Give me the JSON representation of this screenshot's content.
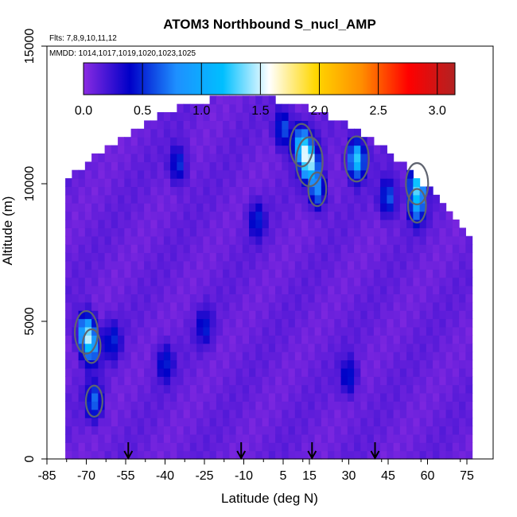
{
  "chart_data": {
    "type": "heatmap",
    "title": "ATOM3 Northbound S_nucl_AMP",
    "flights_label": "Flts: 7,8,9,10,11,12",
    "dates_label": "MMDD: 1014,1017,1019,1020,1023,1025",
    "xlabel": "Latitude (deg N)",
    "ylabel": "Altitude (m)",
    "xlim": [
      -85,
      85
    ],
    "ylim": [
      0,
      15000
    ],
    "x_ticks": [
      "-85",
      "-70",
      "-55",
      "-40",
      "-25",
      "-10",
      "5",
      "15",
      "30",
      "45",
      "60",
      "75"
    ],
    "x_tick_values": [
      -85,
      -70,
      -55,
      -40,
      -25,
      -10,
      5,
      15,
      30,
      45,
      60,
      75
    ],
    "y_ticks": [
      "0",
      "5000",
      "10000",
      "15000"
    ],
    "y_tick_values": [
      0,
      5000,
      10000,
      15000
    ],
    "colorbar": {
      "range": [
        0,
        3.15
      ],
      "ticks": [
        "0.0",
        "0.5",
        "1.0",
        "1.5",
        "2.0",
        "2.5",
        "3.0"
      ],
      "tick_values": [
        0,
        0.5,
        1.0,
        1.5,
        2.0,
        2.5,
        3.0
      ],
      "colors": [
        "#8a2be2",
        "#0000c8",
        "#1e90ff",
        "#00bfff",
        "#ffffff",
        "#ffd700",
        "#ff8c00",
        "#ff0000",
        "#b22222"
      ]
    },
    "arrow_latitudes": [
      -54,
      -11,
      16,
      40
    ],
    "background_value": 0.1,
    "hotspots": [
      {
        "lat": 15,
        "alt": 10800,
        "value": 1.3
      },
      {
        "lat": 12,
        "alt": 11400,
        "value": 1.05
      },
      {
        "lat": 18,
        "alt": 9800,
        "value": 0.7
      },
      {
        "lat": 33,
        "alt": 10900,
        "value": 1.15
      },
      {
        "lat": 56,
        "alt": 10000,
        "value": 1.0
      },
      {
        "lat": 56,
        "alt": 9200,
        "value": 0.7
      },
      {
        "lat": -70,
        "alt": 4600,
        "value": 1.05
      },
      {
        "lat": -68,
        "alt": 4100,
        "value": 0.7
      },
      {
        "lat": -67,
        "alt": 2100,
        "value": 0.6
      },
      {
        "lat": 5,
        "alt": 12000,
        "value": 0.55
      },
      {
        "lat": 45,
        "alt": 9500,
        "value": 0.55
      },
      {
        "lat": -35,
        "alt": 10700,
        "value": 0.45
      },
      {
        "lat": -5,
        "alt": 8700,
        "value": 0.4
      },
      {
        "lat": -40,
        "alt": 3500,
        "value": 0.4
      },
      {
        "lat": 30,
        "alt": 3000,
        "value": 0.4
      },
      {
        "lat": -60,
        "alt": 4300,
        "value": 0.4
      },
      {
        "lat": -25,
        "alt": 4800,
        "value": 0.35
      }
    ]
  }
}
